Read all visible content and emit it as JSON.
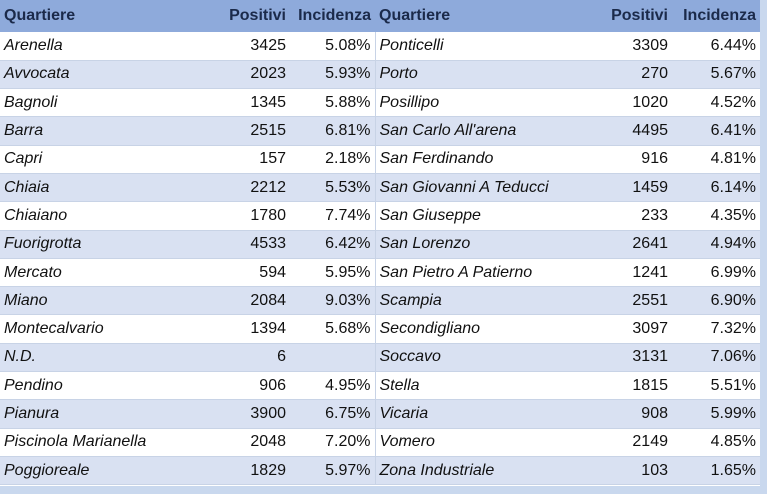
{
  "table": {
    "header": [
      "Quartiere",
      "Positivi",
      "Incidenza",
      "Quartiere",
      "Positivi",
      "Incidenza"
    ],
    "rows": [
      [
        "Arenella",
        "3425",
        "5.08%",
        "Ponticelli",
        "3309",
        "6.44%"
      ],
      [
        "Avvocata",
        "2023",
        "5.93%",
        "Porto",
        "270",
        "5.67%"
      ],
      [
        "Bagnoli",
        "1345",
        "5.88%",
        "Posillipo",
        "1020",
        "4.52%"
      ],
      [
        "Barra",
        "2515",
        "6.81%",
        "San Carlo All'arena",
        "4495",
        "6.41%"
      ],
      [
        "Capri",
        "157",
        "2.18%",
        "San Ferdinando",
        "916",
        "4.81%"
      ],
      [
        "Chiaia",
        "2212",
        "5.53%",
        "San Giovanni A Teducci",
        "1459",
        "6.14%"
      ],
      [
        "Chiaiano",
        "1780",
        "7.74%",
        "San Giuseppe",
        "233",
        "4.35%"
      ],
      [
        "Fuorigrotta",
        "4533",
        "6.42%",
        "San Lorenzo",
        "2641",
        "4.94%"
      ],
      [
        "Mercato",
        "594",
        "5.95%",
        "San Pietro A Patierno",
        "1241",
        "6.99%"
      ],
      [
        "Miano",
        "2084",
        "9.03%",
        "Scampia",
        "2551",
        "6.90%"
      ],
      [
        "Montecalvario",
        "1394",
        "5.68%",
        "Secondigliano",
        "3097",
        "7.32%"
      ],
      [
        "N.D.",
        "6",
        null,
        "Soccavo",
        "3131",
        "7.06%"
      ],
      [
        "Pendino",
        "906",
        "4.95%",
        "Stella",
        "1815",
        "5.51%"
      ],
      [
        "Pianura",
        "3900",
        "6.75%",
        "Vicaria",
        "908",
        "5.99%"
      ],
      [
        "Piscinola Marianella",
        "2048",
        "7.20%",
        "Vomero",
        "2149",
        "4.85%"
      ],
      [
        "Poggioreale",
        "1829",
        "5.97%",
        "Zona Industriale",
        "103",
        "1.65%"
      ]
    ]
  }
}
